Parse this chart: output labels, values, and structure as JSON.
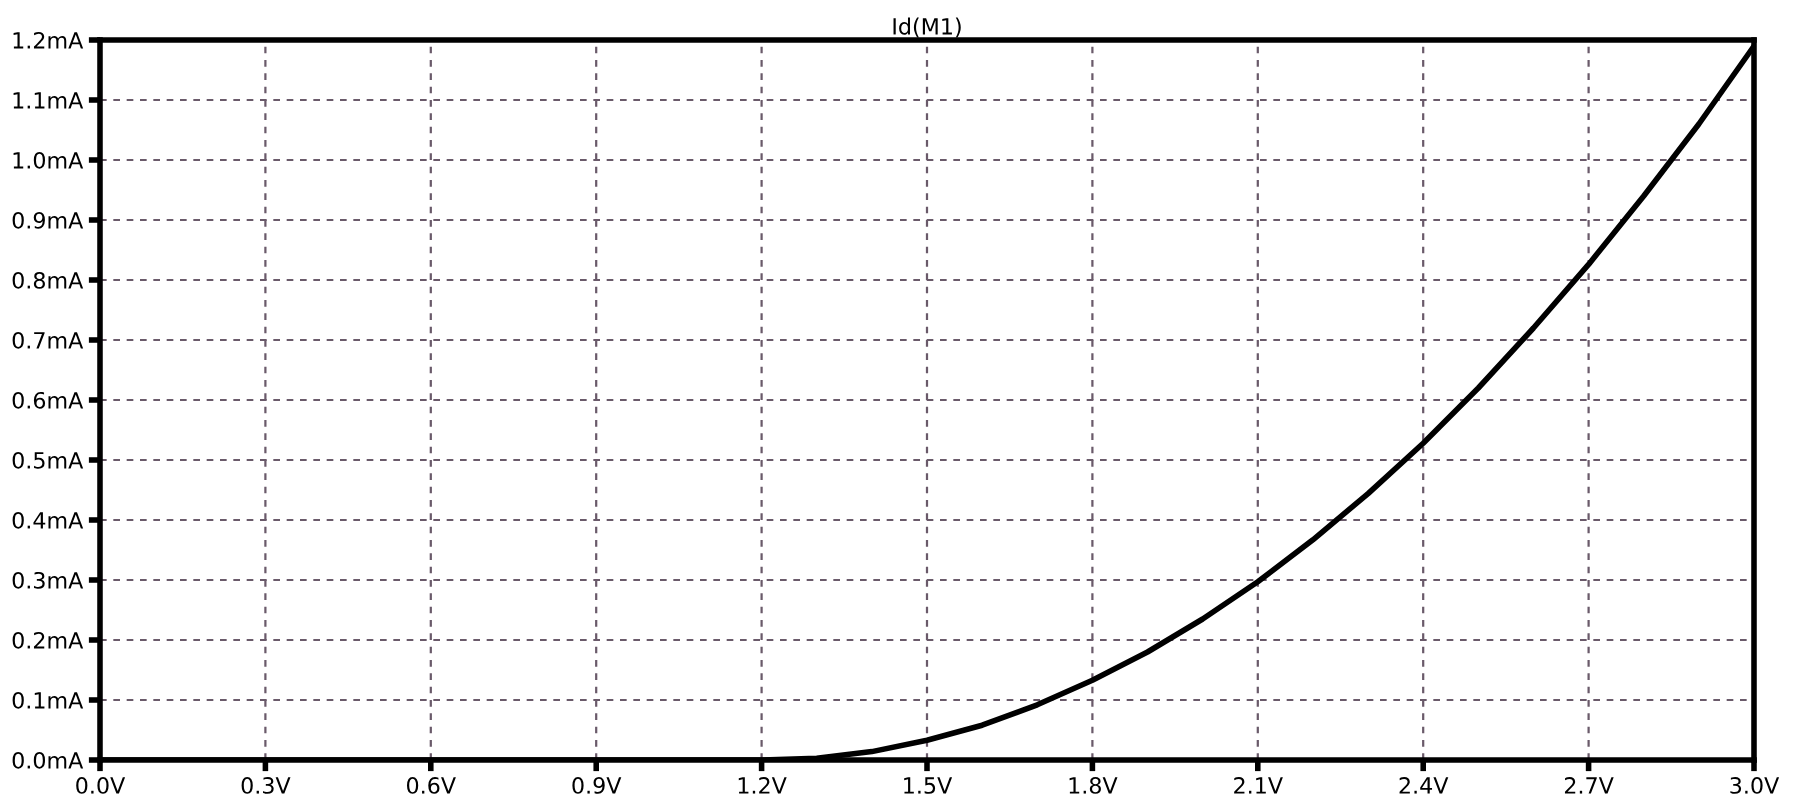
{
  "chart_data": {
    "type": "line",
    "title": "Id(M1)",
    "series": [
      {
        "color": "#000000",
        "x": [
          0.0,
          0.6,
          1.0,
          1.2,
          1.3,
          1.4,
          1.5,
          1.6,
          1.7,
          1.8,
          1.9,
          2.0,
          2.1,
          2.2,
          2.3,
          2.4,
          2.5,
          2.6,
          2.7,
          2.8,
          2.9,
          3.0
        ],
        "values": [
          0,
          0,
          0,
          0,
          0.003,
          0.014,
          0.033,
          0.058,
          0.092,
          0.133,
          0.18,
          0.235,
          0.297,
          0.367,
          0.444,
          0.528,
          0.62,
          0.72,
          0.826,
          0.94,
          1.06,
          1.19
        ]
      }
    ],
    "xlim": [
      0,
      3.0
    ],
    "xticks": [
      {
        "value": 0,
        "label": "0.0V"
      },
      {
        "value": 0.3,
        "label": "0.3V"
      },
      {
        "value": 0.6,
        "label": "0.6V"
      },
      {
        "value": 0.9,
        "label": "0.9V"
      },
      {
        "value": 1.2,
        "label": "1.2V"
      },
      {
        "value": 1.5,
        "label": "1.5V"
      },
      {
        "value": 1.8,
        "label": "1.8V"
      },
      {
        "value": 2.1,
        "label": "2.1V"
      },
      {
        "value": 2.4,
        "label": "2.4V"
      },
      {
        "value": 2.7,
        "label": "2.7V"
      },
      {
        "value": 3.0,
        "label": "3.0V"
      }
    ],
    "ylim": [
      0,
      1.2
    ],
    "yticks": [
      {
        "value": 0,
        "label": "0.0mA"
      },
      {
        "value": 0.1,
        "label": "0.1mA"
      },
      {
        "value": 0.2,
        "label": "0.2mA"
      },
      {
        "value": 0.3,
        "label": "0.3mA"
      },
      {
        "value": 0.4,
        "label": "0.4mA"
      },
      {
        "value": 0.5,
        "label": "0.5mA"
      },
      {
        "value": 0.6,
        "label": "0.6mA"
      },
      {
        "value": 0.7,
        "label": "0.7mA"
      },
      {
        "value": 0.8,
        "label": "0.8mA"
      },
      {
        "value": 0.9,
        "label": "0.9mA"
      },
      {
        "value": 1.0,
        "label": "1.0mA"
      },
      {
        "value": 1.1,
        "label": "1.1mA"
      },
      {
        "value": 1.2,
        "label": "1.2mA"
      }
    ],
    "grid": true,
    "line_style": "solid",
    "marker": "none"
  }
}
